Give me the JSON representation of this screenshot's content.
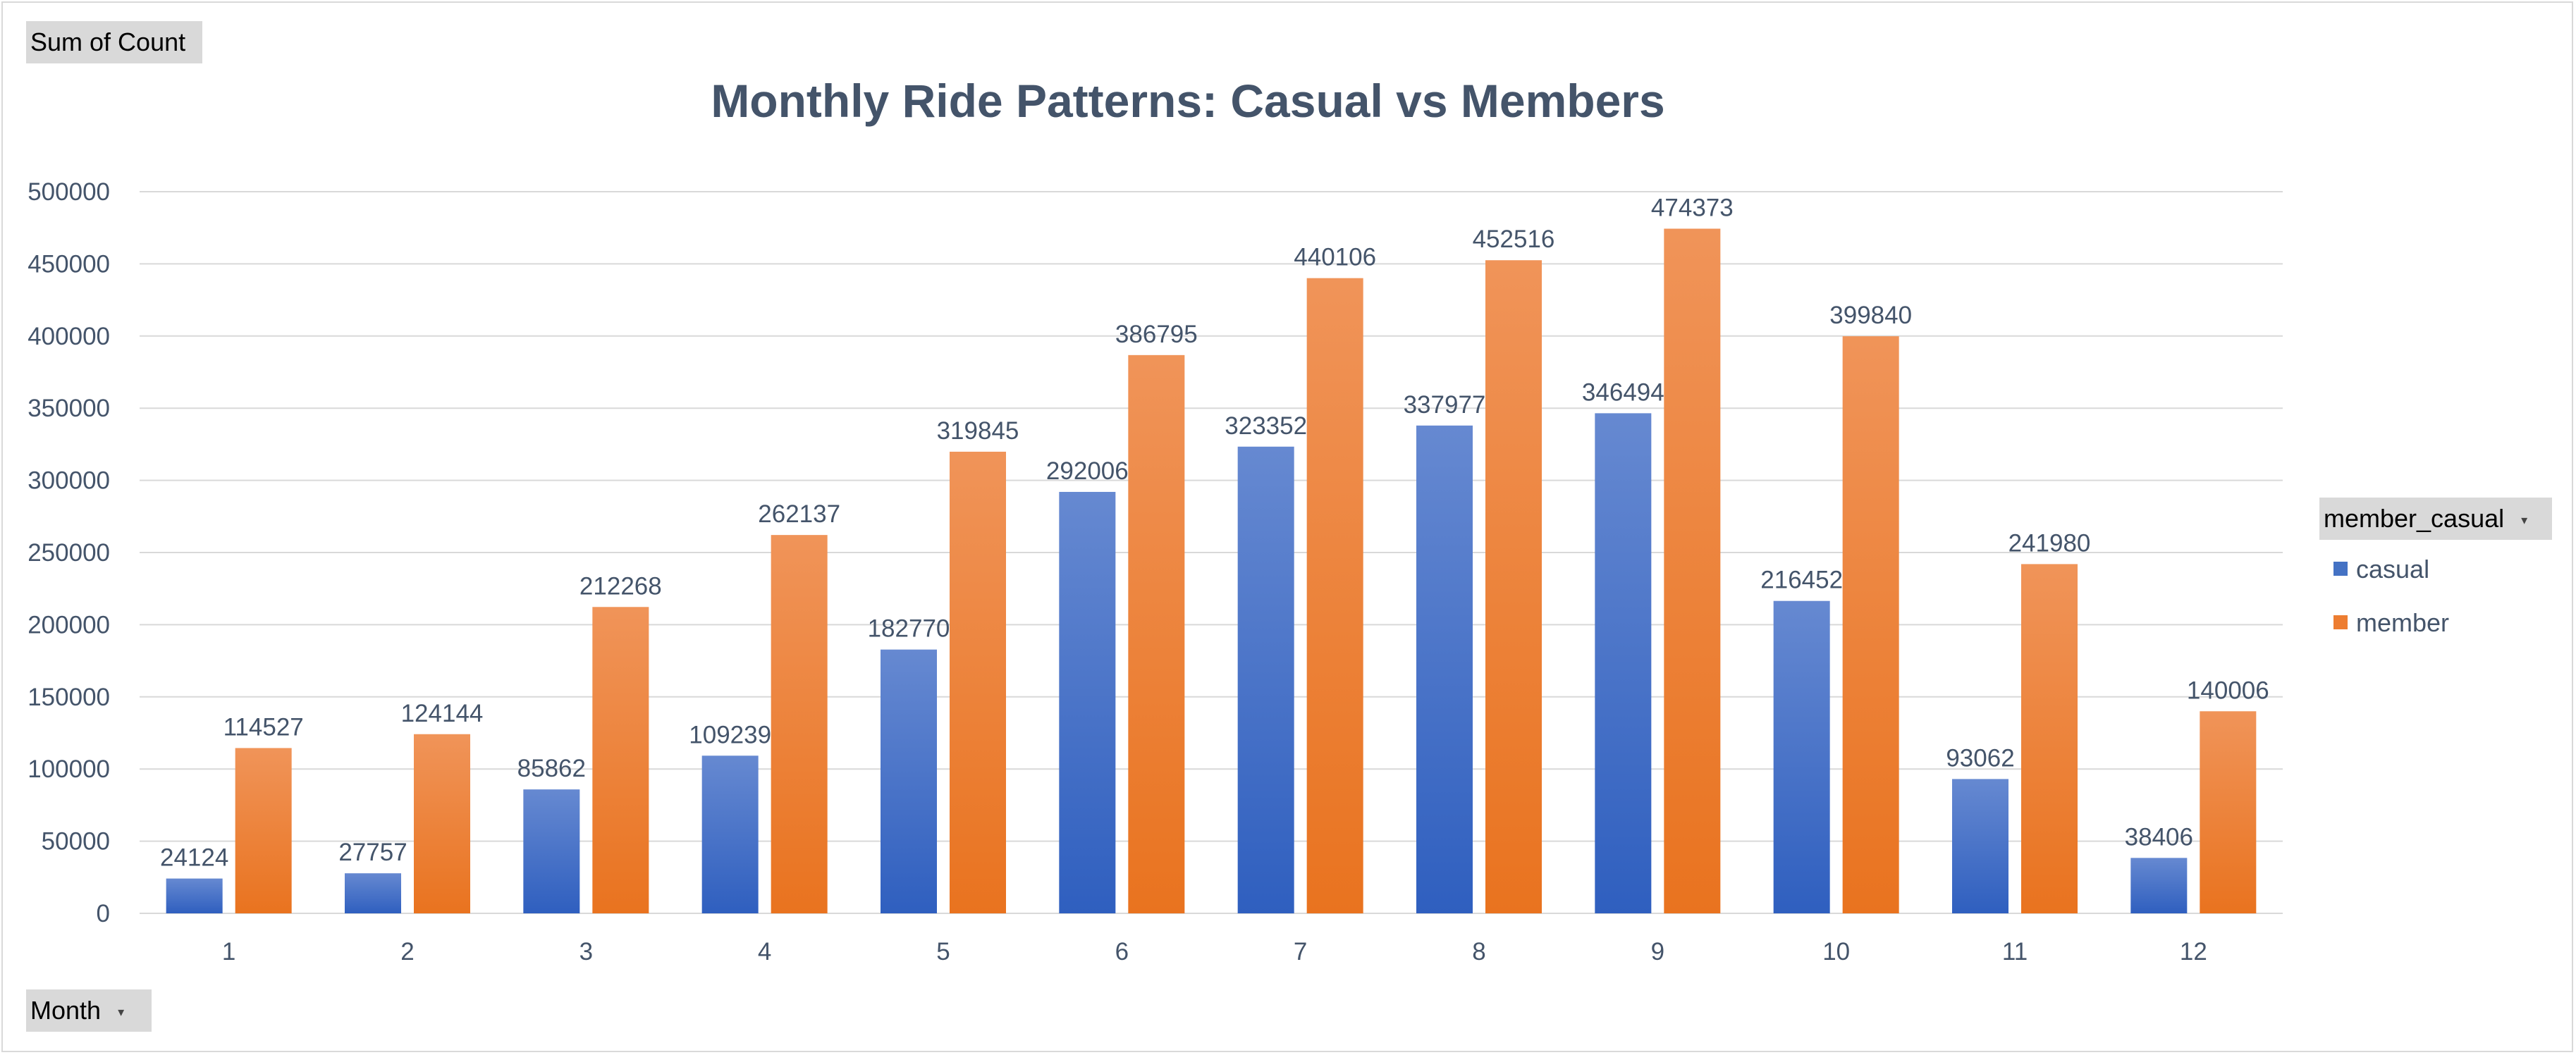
{
  "pivot": {
    "values_field": "Sum of Count",
    "axis_field": "Month",
    "legend_field": "member_casual"
  },
  "colors": {
    "casual": "#4472c4",
    "member": "#ed7d31",
    "text": "#44546a",
    "grid": "#d9d9d9"
  },
  "chart_data": {
    "type": "bar",
    "title": "Monthly Ride Patterns: Casual vs Members",
    "xlabel": "",
    "ylabel": "",
    "categories": [
      "1",
      "2",
      "3",
      "4",
      "5",
      "6",
      "7",
      "8",
      "9",
      "10",
      "11",
      "12"
    ],
    "series": [
      {
        "name": "casual",
        "values": [
          24124,
          27757,
          85862,
          109239,
          182770,
          292006,
          323352,
          337977,
          346494,
          216452,
          93062,
          38406
        ]
      },
      {
        "name": "member",
        "values": [
          114527,
          124144,
          212268,
          262137,
          319845,
          386795,
          440106,
          452516,
          474373,
          399840,
          241980,
          140006
        ]
      }
    ],
    "ylim": [
      0,
      500000
    ],
    "yticks": [
      0,
      50000,
      100000,
      150000,
      200000,
      250000,
      300000,
      350000,
      400000,
      450000,
      500000
    ],
    "grid": true,
    "legend_position": "right"
  }
}
